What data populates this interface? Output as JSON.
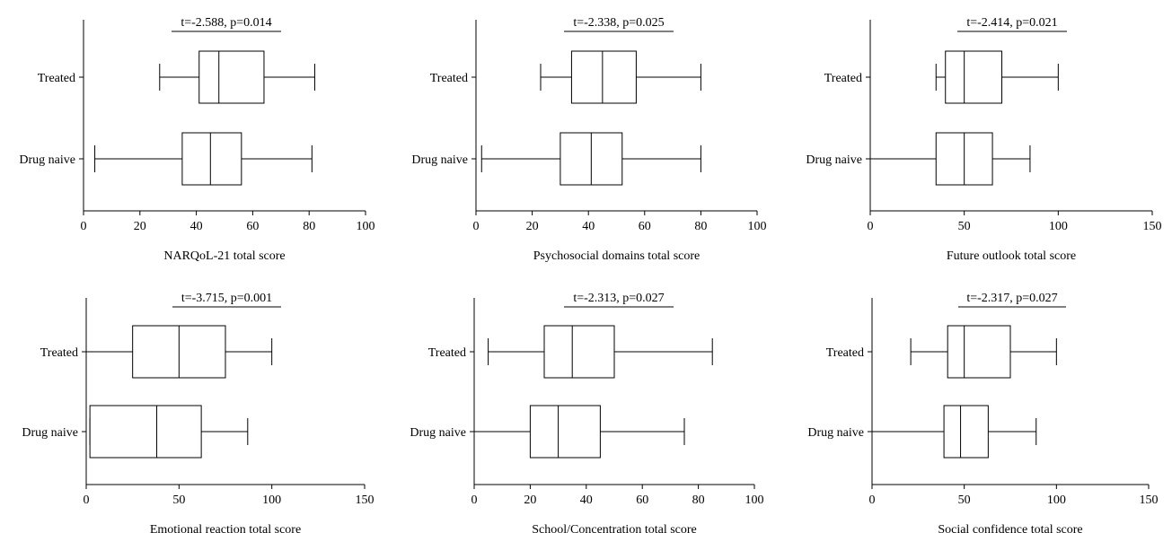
{
  "chart_data": [
    {
      "type": "boxplot",
      "xlabel": "NARQoL-21 total score",
      "xlim": [
        0,
        100
      ],
      "xticks": [
        0,
        20,
        40,
        60,
        80,
        100
      ],
      "annotation": "t=-2.588, p=0.014",
      "groups": [
        {
          "name": "Treated",
          "min": 27,
          "q1": 41,
          "median": 48,
          "q3": 64,
          "max": 82
        },
        {
          "name": "Drug naive",
          "min": 4,
          "q1": 35,
          "median": 45,
          "q3": 56,
          "max": 81
        }
      ]
    },
    {
      "type": "boxplot",
      "xlabel": "Psychosocial domains total score",
      "xlim": [
        0,
        100
      ],
      "xticks": [
        0,
        20,
        40,
        60,
        80,
        100
      ],
      "annotation": "t=-2.338, p=0.025",
      "groups": [
        {
          "name": "Treated",
          "min": 23,
          "q1": 34,
          "median": 45,
          "q3": 57,
          "max": 80
        },
        {
          "name": "Drug naive",
          "min": 2,
          "q1": 30,
          "median": 41,
          "q3": 52,
          "max": 80
        }
      ]
    },
    {
      "type": "boxplot",
      "xlabel": "Future outlook total score",
      "xlim": [
        0,
        150
      ],
      "xticks": [
        0,
        50,
        100,
        150
      ],
      "annotation": "t=-2.414, p=0.021",
      "groups": [
        {
          "name": "Treated",
          "min": 35,
          "q1": 40,
          "median": 50,
          "q3": 70,
          "max": 100
        },
        {
          "name": "Drug naive",
          "min": 0,
          "q1": 35,
          "median": 50,
          "q3": 65,
          "max": 85
        }
      ]
    },
    {
      "type": "boxplot",
      "xlabel": "Emotional reaction total score",
      "xlim": [
        0,
        150
      ],
      "xticks": [
        0,
        50,
        100,
        150
      ],
      "annotation": "t=-3.715, p=0.001",
      "groups": [
        {
          "name": "Treated",
          "min": 0,
          "q1": 25,
          "median": 50,
          "q3": 75,
          "max": 100
        },
        {
          "name": "Drug naive",
          "min": 2,
          "q1": 2,
          "median": 38,
          "q3": 62,
          "max": 87
        }
      ]
    },
    {
      "type": "boxplot",
      "xlabel": "School/Concentration total score",
      "xlim": [
        0,
        100
      ],
      "xticks": [
        0,
        20,
        40,
        60,
        80,
        100
      ],
      "annotation": "t=-2.313, p=0.027",
      "groups": [
        {
          "name": "Treated",
          "min": 5,
          "q1": 25,
          "median": 35,
          "q3": 50,
          "max": 85
        },
        {
          "name": "Drug naive",
          "min": 0,
          "q1": 20,
          "median": 30,
          "q3": 45,
          "max": 75
        }
      ]
    },
    {
      "type": "boxplot",
      "xlabel": "Social confidence total score",
      "xlim": [
        0,
        150
      ],
      "xticks": [
        0,
        50,
        100,
        150
      ],
      "annotation": "t=-2.317, p=0.027",
      "groups": [
        {
          "name": "Treated",
          "min": 21,
          "q1": 41,
          "median": 50,
          "q3": 75,
          "max": 100
        },
        {
          "name": "Drug naive",
          "min": 0,
          "q1": 39,
          "median": 48,
          "q3": 63,
          "max": 89
        }
      ]
    }
  ]
}
